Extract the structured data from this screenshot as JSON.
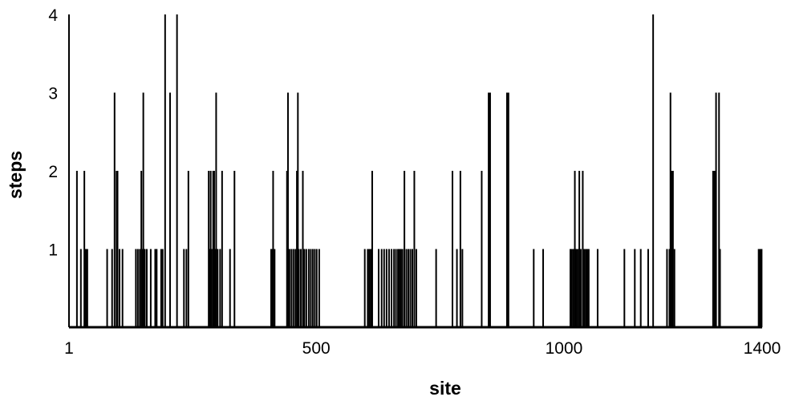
{
  "chart_data": {
    "type": "bar",
    "title": "",
    "xlabel": "site",
    "ylabel": "steps",
    "xlim": [
      1,
      1400
    ],
    "ylim": [
      0,
      4
    ],
    "x_ticks": [
      {
        "value": 1,
        "label": "1"
      },
      {
        "value": 500,
        "label": "500"
      },
      {
        "value": 1000,
        "label": "1000"
      },
      {
        "value": 1400,
        "label": "1400"
      }
    ],
    "y_ticks": [
      {
        "value": 1,
        "label": "1"
      },
      {
        "value": 2,
        "label": "2"
      },
      {
        "value": 3,
        "label": "3"
      },
      {
        "value": 4,
        "label": "4"
      }
    ],
    "grid": false,
    "bar_color": "#000000",
    "series": [
      {
        "points": [
          {
            "x": 17,
            "y": 2
          },
          {
            "x": 25,
            "y": 1
          },
          {
            "x": 32,
            "y": 2
          },
          {
            "x": 35,
            "y": 1
          },
          {
            "x": 38,
            "y": 1
          },
          {
            "x": 78,
            "y": 1
          },
          {
            "x": 88,
            "y": 1
          },
          {
            "x": 93,
            "y": 3
          },
          {
            "x": 97,
            "y": 2
          },
          {
            "x": 99,
            "y": 2
          },
          {
            "x": 103,
            "y": 1
          },
          {
            "x": 109,
            "y": 1
          },
          {
            "x": 136,
            "y": 1
          },
          {
            "x": 140,
            "y": 1
          },
          {
            "x": 144,
            "y": 1
          },
          {
            "x": 147,
            "y": 2
          },
          {
            "x": 149,
            "y": 1
          },
          {
            "x": 151,
            "y": 3
          },
          {
            "x": 154,
            "y": 1
          },
          {
            "x": 158,
            "y": 1
          },
          {
            "x": 166,
            "y": 1
          },
          {
            "x": 175,
            "y": 1
          },
          {
            "x": 178,
            "y": 1
          },
          {
            "x": 187,
            "y": 1
          },
          {
            "x": 190,
            "y": 1
          },
          {
            "x": 195,
            "y": 4
          },
          {
            "x": 205,
            "y": 3
          },
          {
            "x": 219,
            "y": 4
          },
          {
            "x": 233,
            "y": 1
          },
          {
            "x": 238,
            "y": 1
          },
          {
            "x": 242,
            "y": 2
          },
          {
            "x": 283,
            "y": 2
          },
          {
            "x": 285,
            "y": 1
          },
          {
            "x": 287,
            "y": 2
          },
          {
            "x": 289,
            "y": 1
          },
          {
            "x": 292,
            "y": 2
          },
          {
            "x": 294,
            "y": 2
          },
          {
            "x": 296,
            "y": 1
          },
          {
            "x": 298,
            "y": 3
          },
          {
            "x": 301,
            "y": 1
          },
          {
            "x": 306,
            "y": 1
          },
          {
            "x": 310,
            "y": 2
          },
          {
            "x": 326,
            "y": 1
          },
          {
            "x": 335,
            "y": 2
          },
          {
            "x": 409,
            "y": 1
          },
          {
            "x": 411,
            "y": 1
          },
          {
            "x": 413,
            "y": 2
          },
          {
            "x": 416,
            "y": 1
          },
          {
            "x": 441,
            "y": 2
          },
          {
            "x": 443,
            "y": 3
          },
          {
            "x": 446,
            "y": 1
          },
          {
            "x": 450,
            "y": 1
          },
          {
            "x": 454,
            "y": 1
          },
          {
            "x": 458,
            "y": 1
          },
          {
            "x": 461,
            "y": 2
          },
          {
            "x": 463,
            "y": 3
          },
          {
            "x": 465,
            "y": 1
          },
          {
            "x": 469,
            "y": 1
          },
          {
            "x": 473,
            "y": 2
          },
          {
            "x": 476,
            "y": 1
          },
          {
            "x": 480,
            "y": 1
          },
          {
            "x": 485,
            "y": 1
          },
          {
            "x": 489,
            "y": 1
          },
          {
            "x": 493,
            "y": 1
          },
          {
            "x": 497,
            "y": 1
          },
          {
            "x": 501,
            "y": 1
          },
          {
            "x": 506,
            "y": 1
          },
          {
            "x": 598,
            "y": 1
          },
          {
            "x": 604,
            "y": 1
          },
          {
            "x": 607,
            "y": 1
          },
          {
            "x": 610,
            "y": 1
          },
          {
            "x": 613,
            "y": 2
          },
          {
            "x": 626,
            "y": 1
          },
          {
            "x": 632,
            "y": 1
          },
          {
            "x": 637,
            "y": 1
          },
          {
            "x": 642,
            "y": 1
          },
          {
            "x": 647,
            "y": 1
          },
          {
            "x": 652,
            "y": 1
          },
          {
            "x": 657,
            "y": 1
          },
          {
            "x": 661,
            "y": 1
          },
          {
            "x": 665,
            "y": 1
          },
          {
            "x": 668,
            "y": 1
          },
          {
            "x": 671,
            "y": 1
          },
          {
            "x": 674,
            "y": 1
          },
          {
            "x": 678,
            "y": 2
          },
          {
            "x": 682,
            "y": 1
          },
          {
            "x": 686,
            "y": 1
          },
          {
            "x": 690,
            "y": 1
          },
          {
            "x": 694,
            "y": 1
          },
          {
            "x": 698,
            "y": 2
          },
          {
            "x": 702,
            "y": 1
          },
          {
            "x": 742,
            "y": 1
          },
          {
            "x": 775,
            "y": 2
          },
          {
            "x": 784,
            "y": 1
          },
          {
            "x": 791,
            "y": 2
          },
          {
            "x": 795,
            "y": 1
          },
          {
            "x": 834,
            "y": 2
          },
          {
            "x": 848,
            "y": 3
          },
          {
            "x": 851,
            "y": 3
          },
          {
            "x": 885,
            "y": 3
          },
          {
            "x": 888,
            "y": 3
          },
          {
            "x": 939,
            "y": 1
          },
          {
            "x": 958,
            "y": 1
          },
          {
            "x": 1013,
            "y": 1
          },
          {
            "x": 1016,
            "y": 1
          },
          {
            "x": 1019,
            "y": 1
          },
          {
            "x": 1022,
            "y": 2
          },
          {
            "x": 1025,
            "y": 1
          },
          {
            "x": 1028,
            "y": 1
          },
          {
            "x": 1031,
            "y": 2
          },
          {
            "x": 1034,
            "y": 1
          },
          {
            "x": 1038,
            "y": 2
          },
          {
            "x": 1041,
            "y": 1
          },
          {
            "x": 1044,
            "y": 1
          },
          {
            "x": 1047,
            "y": 1
          },
          {
            "x": 1050,
            "y": 1
          },
          {
            "x": 1068,
            "y": 1
          },
          {
            "x": 1122,
            "y": 1
          },
          {
            "x": 1143,
            "y": 1
          },
          {
            "x": 1155,
            "y": 1
          },
          {
            "x": 1170,
            "y": 1
          },
          {
            "x": 1180,
            "y": 4
          },
          {
            "x": 1208,
            "y": 1
          },
          {
            "x": 1213,
            "y": 1
          },
          {
            "x": 1215,
            "y": 3
          },
          {
            "x": 1217,
            "y": 2
          },
          {
            "x": 1220,
            "y": 2
          },
          {
            "x": 1223,
            "y": 1
          },
          {
            "x": 1301,
            "y": 2
          },
          {
            "x": 1304,
            "y": 2
          },
          {
            "x": 1307,
            "y": 3
          },
          {
            "x": 1313,
            "y": 3
          },
          {
            "x": 1315,
            "y": 1
          },
          {
            "x": 1393,
            "y": 1
          },
          {
            "x": 1396,
            "y": 1
          },
          {
            "x": 1399,
            "y": 1
          }
        ]
      }
    ]
  }
}
